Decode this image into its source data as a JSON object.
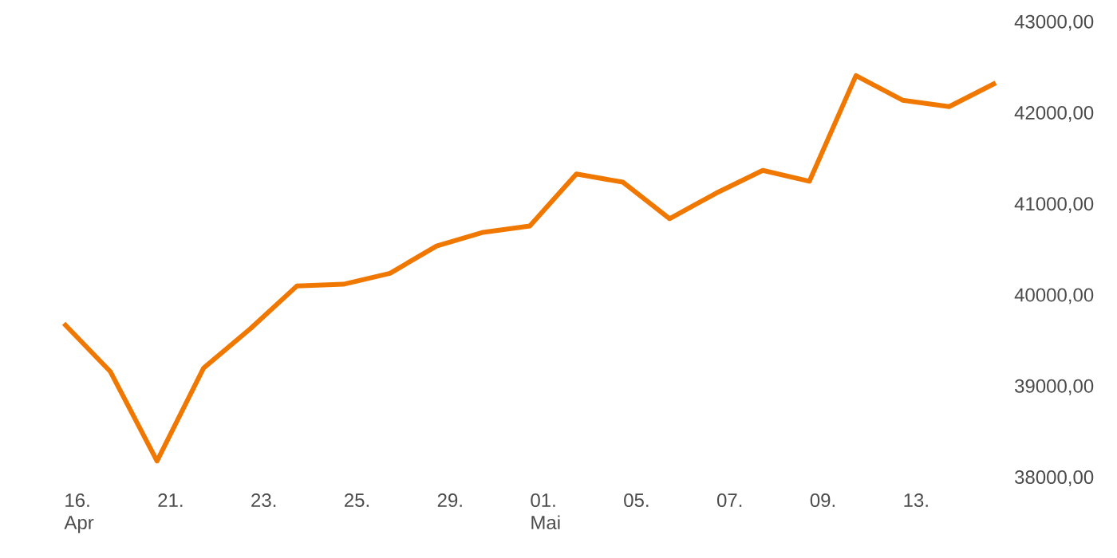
{
  "chart_data": {
    "type": "line",
    "categories": [
      "16. Apr",
      null,
      "21.",
      null,
      "23.",
      null,
      "25.",
      null,
      "29.",
      null,
      "01. Mai",
      null,
      "05.",
      null,
      "07.",
      null,
      "09.",
      null,
      "13.",
      null,
      null
    ],
    "series": [
      {
        "color": "#f07800",
        "values": [
          39700,
          39170,
          38190,
          39210,
          39640,
          40110,
          40130,
          40250,
          40550,
          40700,
          40770,
          41340,
          41250,
          40850,
          41130,
          41380,
          41260,
          42420,
          42150,
          42080,
          42340
        ]
      }
    ],
    "ylim": [
      38000,
      43000
    ],
    "yticks": [
      {
        "value": 38000,
        "label": "38000,00"
      },
      {
        "value": 39000,
        "label": "39000,00"
      },
      {
        "value": 40000,
        "label": "40000,00"
      },
      {
        "value": 41000,
        "label": "41000,00"
      },
      {
        "value": 42000,
        "label": "42000,00"
      },
      {
        "value": 43000,
        "label": "43000,00"
      }
    ],
    "marker": "none",
    "line_style": "solid"
  }
}
